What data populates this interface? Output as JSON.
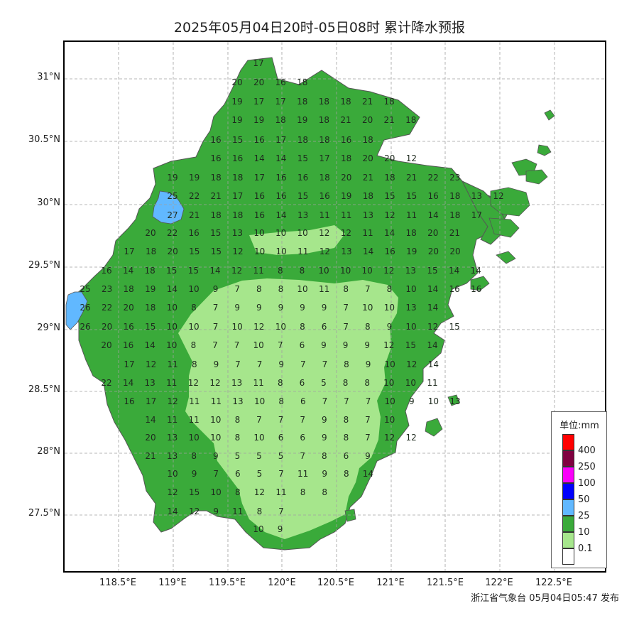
{
  "title": "2025年05月04日20时-05日08时 累计降水预报",
  "footer": "浙江省气象台 05月04日05:47 发布",
  "colors": {
    "c_0_1": "#a6e68c",
    "c_10": "#3aaa3a",
    "c_25": "#61b8ff",
    "c_50": "#0000fe",
    "c_100": "#fa00fa",
    "c_250": "#800040",
    "c_400": "#ff0000",
    "grid": "#a0a0a0",
    "county_line": "#8a8a8a"
  },
  "axes": {
    "lat_labels": [
      "31°N",
      "30.5°N",
      "30°N",
      "29.5°N",
      "29°N",
      "28.5°N",
      "28°N",
      "27.5°N"
    ],
    "lon_labels": [
      "118.5°E",
      "119°E",
      "119.5°E",
      "120°E",
      "120.5°E",
      "121°E",
      "121.5°E",
      "122°E",
      "122.5°E"
    ]
  },
  "legend": {
    "title": "单位:mm",
    "labels": [
      "400",
      "250",
      "100",
      "50",
      "25",
      "10",
      "0.1"
    ],
    "swatch_colors": [
      "#ff0000",
      "#800040",
      "#fa00fa",
      "#0000fe",
      "#61b8ff",
      "#3aaa3a",
      "#a6e68c",
      "#ffffff"
    ]
  },
  "station_rows": [
    [
      17
    ],
    [
      20,
      20,
      16,
      18
    ],
    [
      19,
      17,
      17,
      18,
      18,
      18,
      21,
      18
    ],
    [
      19,
      19,
      18,
      19,
      18,
      21,
      20,
      21,
      18
    ],
    [
      16,
      15,
      16,
      17,
      18,
      18,
      16,
      18
    ],
    [
      16,
      16,
      14,
      14,
      15,
      17,
      18,
      20,
      20,
      12
    ],
    [
      19,
      19,
      18,
      18,
      17,
      16,
      16,
      18,
      20,
      21,
      18,
      21,
      22,
      23
    ],
    [
      25,
      22,
      21,
      17,
      16,
      16,
      15,
      16,
      19,
      18,
      15,
      15,
      16,
      18,
      13,
      12
    ],
    [
      27,
      21,
      18,
      18,
      16,
      14,
      13,
      11,
      11,
      13,
      12,
      11,
      14,
      18,
      17
    ],
    [
      20,
      22,
      16,
      15,
      13,
      10,
      10,
      10,
      12,
      12,
      11,
      14,
      18,
      20,
      21
    ],
    [
      17,
      18,
      20,
      15,
      15,
      12,
      10,
      10,
      11,
      12,
      13,
      14,
      16,
      19,
      20,
      20
    ],
    [
      16,
      14,
      18,
      15,
      15,
      14,
      12,
      11,
      8,
      8,
      10,
      10,
      10,
      12,
      13,
      15,
      14,
      14
    ],
    [
      25,
      23,
      18,
      19,
      14,
      10,
      9,
      7,
      8,
      8,
      10,
      11,
      8,
      7,
      8,
      10,
      14,
      16,
      16
    ],
    [
      26,
      22,
      20,
      18,
      10,
      8,
      7,
      9,
      9,
      9,
      9,
      9,
      7,
      10,
      10,
      13,
      14
    ],
    [
      26,
      20,
      16,
      15,
      10,
      10,
      7,
      10,
      12,
      10,
      8,
      6,
      7,
      8,
      9,
      10,
      12,
      15
    ],
    [
      20,
      16,
      14,
      10,
      8,
      7,
      7,
      10,
      7,
      6,
      9,
      9,
      9,
      12,
      15,
      14
    ],
    [
      17,
      12,
      11,
      8,
      9,
      7,
      7,
      9,
      7,
      7,
      8,
      9,
      10,
      12,
      14
    ],
    [
      22,
      14,
      13,
      11,
      12,
      12,
      13,
      11,
      8,
      6,
      5,
      8,
      8,
      10,
      10,
      11
    ],
    [
      16,
      17,
      12,
      11,
      11,
      13,
      10,
      8,
      6,
      7,
      7,
      7,
      10,
      9,
      10,
      13
    ],
    [
      14,
      11,
      11,
      10,
      8,
      7,
      7,
      7,
      9,
      8,
      7,
      10
    ],
    [
      20,
      13,
      10,
      10,
      8,
      10,
      6,
      6,
      9,
      8,
      7,
      12,
      12
    ],
    [
      21,
      13,
      8,
      9,
      5,
      5,
      5,
      7,
      8,
      6,
      9
    ],
    [
      10,
      9,
      7,
      6,
      5,
      7,
      11,
      9,
      8,
      14
    ],
    [
      12,
      15,
      10,
      8,
      12,
      11,
      8,
      8
    ],
    [
      14,
      12,
      9,
      11,
      8,
      7
    ],
    [
      10,
      9
    ]
  ]
}
